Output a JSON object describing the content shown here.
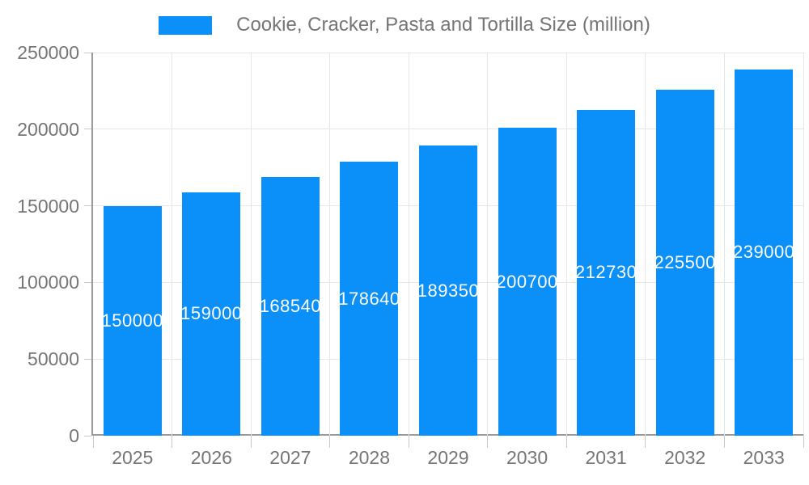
{
  "legend": {
    "label": "Cookie, Cracker, Pasta and Tortilla Size (million)"
  },
  "colors": {
    "bar": "#0a90f8",
    "axis_text": "#757575",
    "grid": "#e6e6e6",
    "axis_line": "#9a9a9a",
    "tick": "#c9c9c9",
    "bar_label": "#ffffff",
    "background": "#ffffff"
  },
  "chart_data": {
    "type": "bar",
    "title": "Cookie, Cracker, Pasta and Tortilla Size (million)",
    "categories": [
      "2025",
      "2026",
      "2027",
      "2028",
      "2029",
      "2030",
      "2031",
      "2032",
      "2033"
    ],
    "series": [
      {
        "name": "Cookie, Cracker, Pasta and Tortilla Size (million)",
        "values": [
          150000,
          159000,
          168540,
          178640,
          189350,
          200700,
          212730,
          225500,
          239000
        ]
      }
    ],
    "values": [
      150000,
      159000,
      168540,
      178640,
      189350,
      200700,
      212730,
      225500,
      239000
    ],
    "bar_value_labels": [
      150000,
      159000,
      168540,
      178640,
      189350,
      200700,
      212730,
      225500,
      239000
    ],
    "xlabel": "",
    "ylabel": "",
    "ylim": [
      0,
      250000
    ],
    "yticks": [
      0,
      50000,
      100000,
      150000,
      200000,
      250000
    ],
    "grid": true,
    "legend_position": "top"
  }
}
